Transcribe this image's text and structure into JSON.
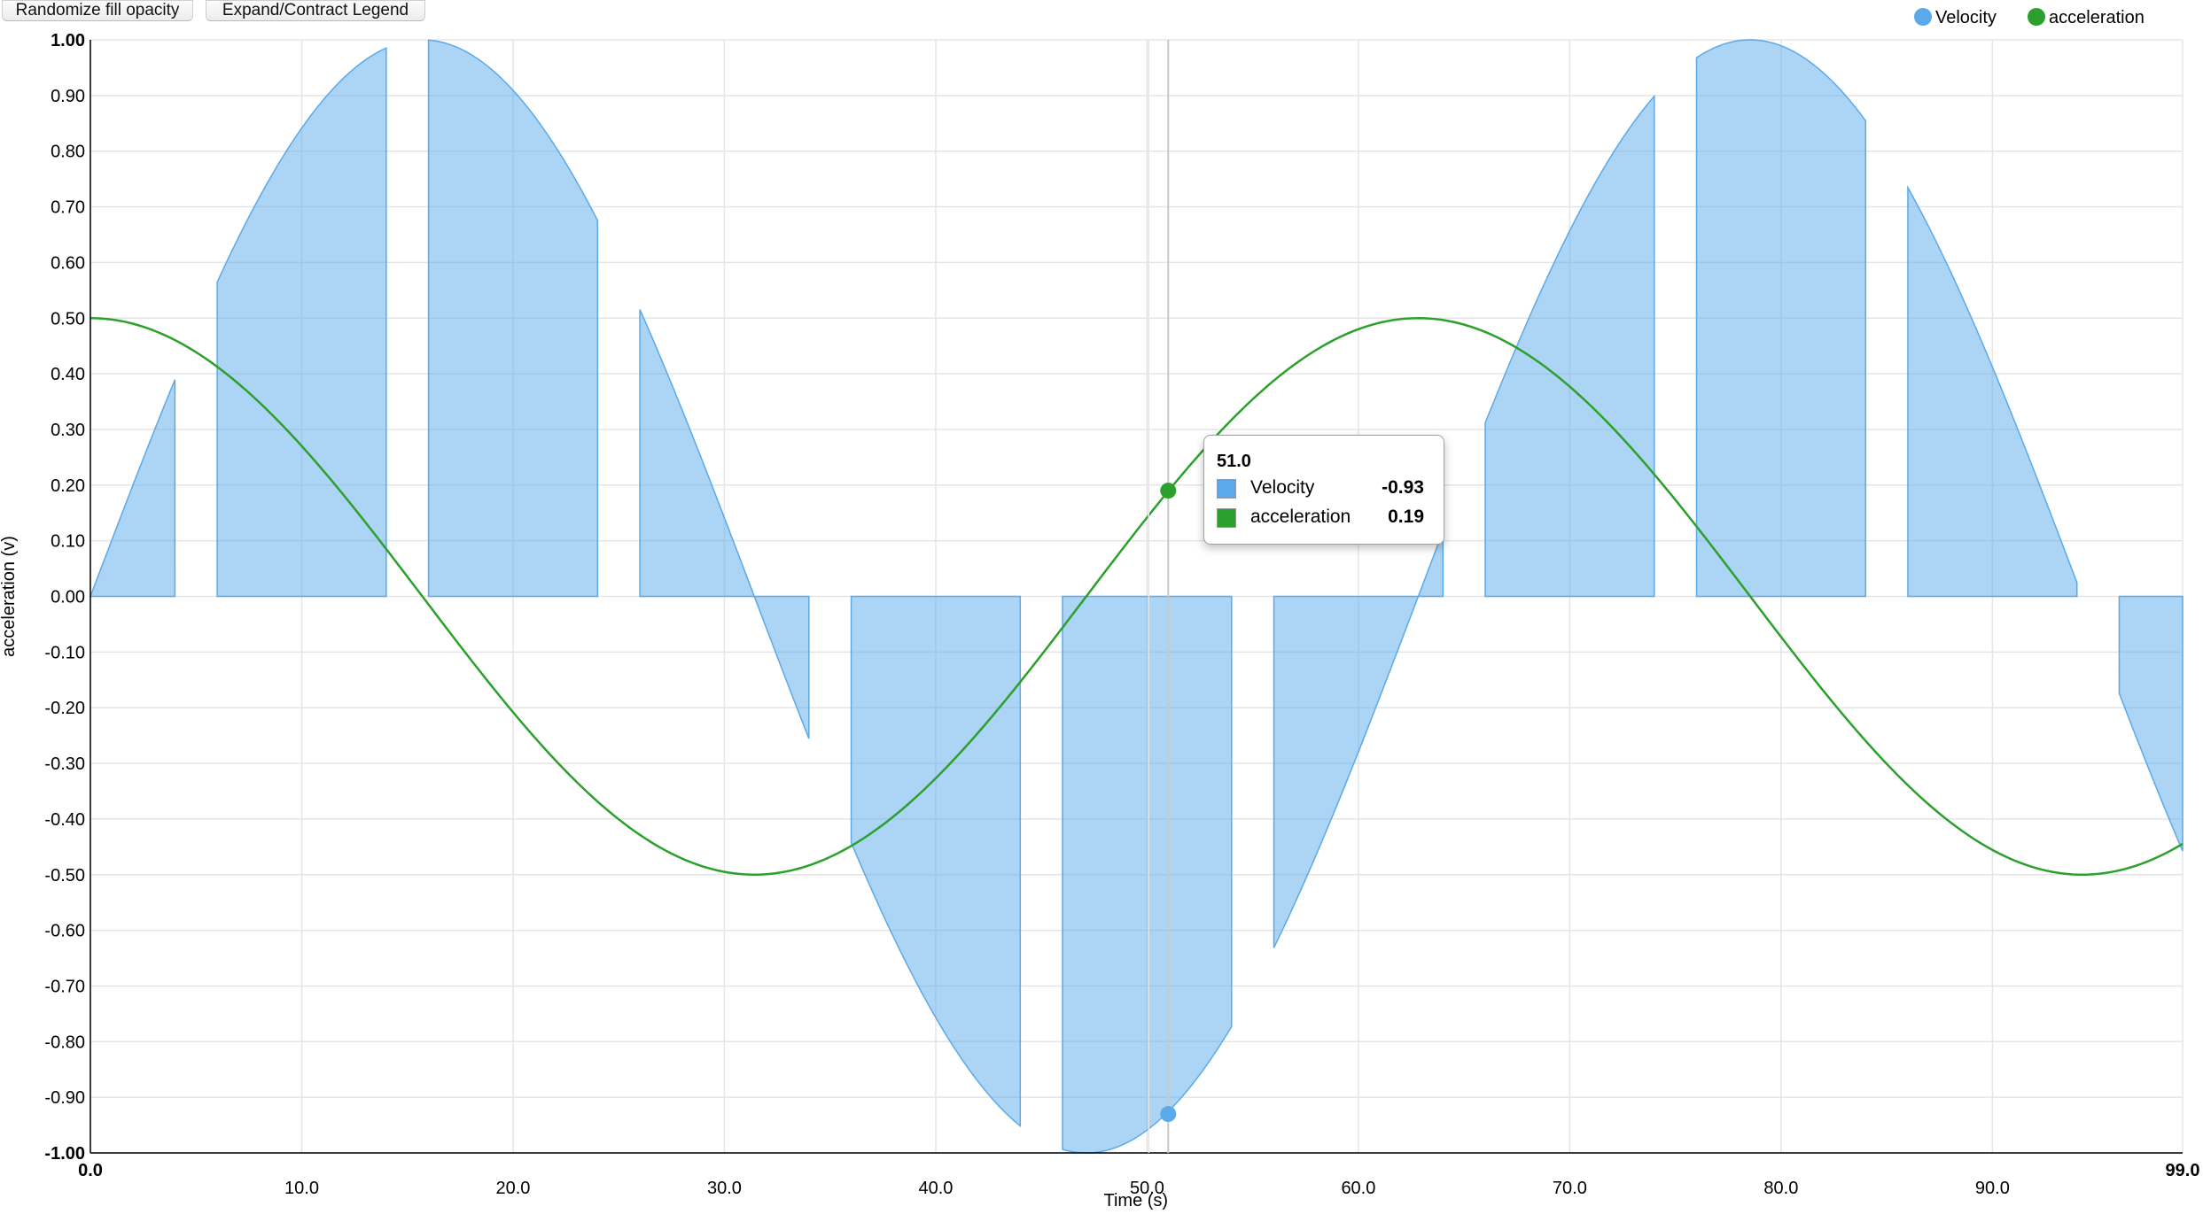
{
  "controls": {
    "randomize_label": "Randomize fill opacity",
    "legend_label": "Expand/Contract Legend"
  },
  "legend": [
    {
      "name": "Velocity",
      "color": "#5aa9ea"
    },
    {
      "name": "acceleration",
      "color": "#2ca02c"
    }
  ],
  "tooltip": {
    "title": "51.0",
    "rows": [
      {
        "name": "Velocity",
        "value": "-0.93",
        "color": "#5aa9ea"
      },
      {
        "name": "acceleration",
        "value": "0.19",
        "color": "#2ca02c"
      }
    ]
  },
  "chart_data": {
    "type": "area",
    "xlabel": "Time (s)",
    "ylabel": "acceleration (v)",
    "xlim": [
      0,
      99
    ],
    "ylim": [
      -1,
      1
    ],
    "x_ticks": [
      "0.0",
      "10.0",
      "20.0",
      "30.0",
      "40.0",
      "50.0",
      "60.0",
      "70.0",
      "80.0",
      "90.0",
      "99.0"
    ],
    "x_tick_values": [
      0,
      10,
      20,
      30,
      40,
      50,
      60,
      70,
      80,
      90,
      99
    ],
    "y_ticks": [
      "-1.00",
      "-0.90",
      "-0.80",
      "-0.70",
      "-0.60",
      "-0.50",
      "-0.40",
      "-0.30",
      "-0.20",
      "-0.10",
      "0.00",
      "0.10",
      "0.20",
      "0.30",
      "0.40",
      "0.50",
      "0.60",
      "0.70",
      "0.80",
      "0.90",
      "1.00"
    ],
    "grid": true,
    "legend_position": "top-right",
    "hover_x": 51,
    "series": [
      {
        "name": "Velocity",
        "kind": "area",
        "color": "#5aa9ea",
        "formula": "sin(t/10)",
        "segments": [
          [
            0,
            4
          ],
          [
            6,
            14
          ],
          [
            16,
            24
          ],
          [
            26,
            34
          ],
          [
            36,
            44
          ],
          [
            46,
            54
          ],
          [
            56,
            64
          ],
          [
            66,
            74
          ],
          [
            76,
            84
          ],
          [
            86,
            94
          ],
          [
            96,
            99
          ]
        ],
        "hover_value": -0.93
      },
      {
        "name": "acceleration",
        "kind": "line",
        "color": "#2ca02c",
        "formula": "0.5*cos(t/10)",
        "hover_value": 0.19
      }
    ]
  }
}
